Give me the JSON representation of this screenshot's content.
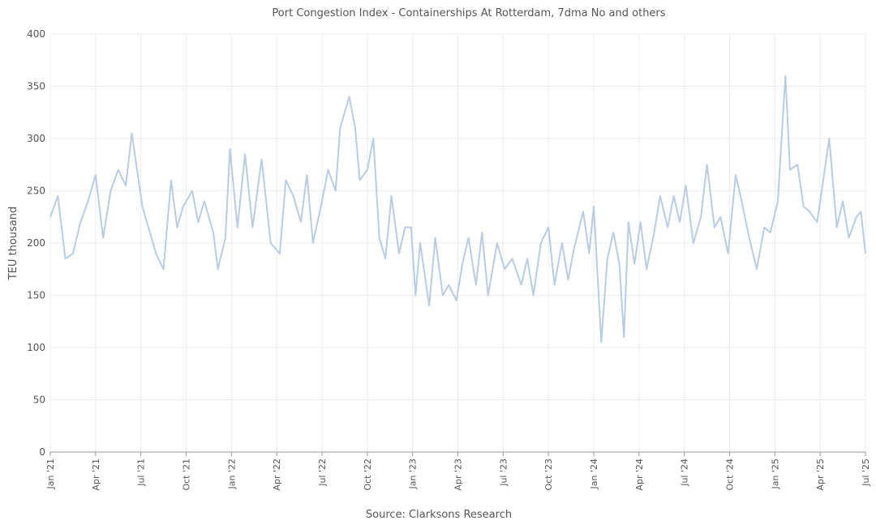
{
  "chart_data": {
    "type": "line",
    "title": "Port Congestion Index - Containerships At Rotterdam, 7dma No and others",
    "y_label": "TEU thousand",
    "source": "Source: Clarksons Research",
    "x": [
      0,
      0.5,
      1,
      1.5,
      2,
      2.5,
      3,
      3.5,
      4,
      4.5,
      5,
      5.4,
      6.1,
      6.6,
      7.0,
      7.5,
      8.0,
      8.4,
      8.8,
      9.4,
      9.8,
      10.2,
      10.8,
      11.1,
      11.6,
      11.9,
      12.4,
      12.9,
      13.4,
      14.0,
      14.6,
      15.2,
      15.6,
      16.1,
      16.6,
      17.0,
      17.4,
      18.0,
      18.4,
      18.9,
      19.2,
      19.8,
      20.2,
      20.5,
      21.0,
      21.4,
      21.8,
      22.2,
      22.6,
      23.1,
      23.5,
      23.9,
      24.2,
      24.5,
      25.1,
      25.5,
      26.0,
      26.4,
      26.9,
      27.3,
      27.7,
      28.2,
      28.6,
      29.0,
      29.6,
      30.1,
      30.6,
      31.2,
      31.6,
      32.0,
      32.5,
      33.0,
      33.4,
      33.9,
      34.3,
      34.7,
      35.3,
      35.7,
      36.0,
      36.5,
      36.9,
      37.3,
      37.7,
      38.0,
      38.3,
      38.7,
      39.1,
      39.5,
      40.0,
      40.4,
      40.9,
      41.3,
      41.7,
      42.1,
      42.6,
      43.1,
      43.5,
      44.0,
      44.4,
      44.9,
      45.4,
      45.8,
      46.3,
      46.8,
      47.3,
      47.7,
      48.2,
      48.4,
      48.7,
      49.0,
      49.5,
      49.9,
      50.3,
      50.8,
      51.2,
      51.6,
      52.1,
      52.5,
      52.9,
      53.4,
      53.7,
      54
    ],
    "series": [
      {
        "name": "Containerships At Rotterdam",
        "color": "#b8cce4",
        "values": [
          225,
          245,
          185,
          190,
          220,
          240,
          265,
          205,
          250,
          270,
          255,
          305,
          235,
          210,
          190,
          175,
          260,
          215,
          235,
          250,
          220,
          240,
          210,
          175,
          205,
          290,
          215,
          285,
          215,
          280,
          200,
          190,
          260,
          245,
          220,
          265,
          200,
          240,
          270,
          250,
          310,
          340,
          310,
          260,
          270,
          300,
          205,
          185,
          245,
          190,
          215,
          215,
          150,
          200,
          140,
          205,
          150,
          160,
          145,
          180,
          205,
          160,
          210,
          150,
          200,
          175,
          185,
          160,
          185,
          150,
          200,
          215,
          160,
          200,
          165,
          195,
          230,
          190,
          235,
          105,
          185,
          210,
          180,
          110,
          220,
          180,
          220,
          175,
          210,
          245,
          215,
          245,
          220,
          255,
          200,
          225,
          275,
          215,
          225,
          190,
          265,
          240,
          205,
          175,
          215,
          210,
          240,
          290,
          360,
          270,
          275,
          235,
          230,
          220,
          260,
          300,
          215,
          240,
          205,
          225,
          230,
          190
        ]
      }
    ],
    "xlim": [
      0,
      54
    ],
    "xticks": [
      {
        "value": 0,
        "label": "Jan '21"
      },
      {
        "value": 3,
        "label": "Apr '21"
      },
      {
        "value": 6,
        "label": "Jul '21"
      },
      {
        "value": 9,
        "label": "Oct '21"
      },
      {
        "value": 12,
        "label": "Jan '22"
      },
      {
        "value": 15,
        "label": "Apr '22"
      },
      {
        "value": 18,
        "label": "Jul '22"
      },
      {
        "value": 21,
        "label": "Oct '22"
      },
      {
        "value": 24,
        "label": "Jan '23"
      },
      {
        "value": 27,
        "label": "Apr '23"
      },
      {
        "value": 30,
        "label": "Jul '23"
      },
      {
        "value": 33,
        "label": "Oct '23"
      },
      {
        "value": 36,
        "label": "Jan '24"
      },
      {
        "value": 39,
        "label": "Apr '24"
      },
      {
        "value": 42,
        "label": "Jul '24"
      },
      {
        "value": 45,
        "label": "Oct '24"
      },
      {
        "value": 48,
        "label": "Jan '25"
      },
      {
        "value": 51,
        "label": "Apr '25"
      },
      {
        "value": 54,
        "label": "Jul '25"
      }
    ],
    "ylim": [
      0,
      400
    ],
    "yticks": [
      0,
      50,
      100,
      150,
      200,
      250,
      300,
      350,
      400
    ],
    "grid": true
  }
}
